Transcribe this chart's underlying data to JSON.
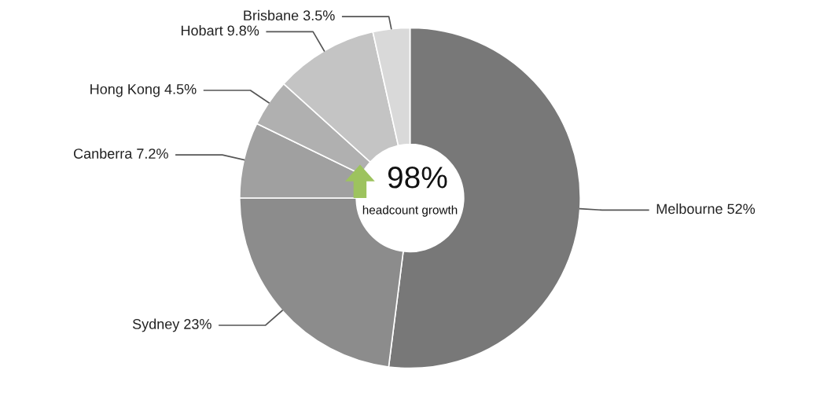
{
  "chart_data": {
    "type": "donut",
    "categories": [
      "Melbourne",
      "Sydney",
      "Canberra",
      "Hong Kong",
      "Hobart",
      "Brisbane"
    ],
    "values": [
      52,
      23,
      7.2,
      4.5,
      9.8,
      3.5
    ],
    "value_labels": [
      "52%",
      "23%",
      "7.2%",
      "4.5%",
      "9.8%",
      "3.5%"
    ],
    "colors": [
      "#787878",
      "#8c8c8c",
      "#a0a0a0",
      "#b0b0b0",
      "#c4c4c4",
      "#d9d9d9"
    ],
    "annotations": [
      "98%",
      "headcount growth"
    ],
    "legend": false
  }
}
